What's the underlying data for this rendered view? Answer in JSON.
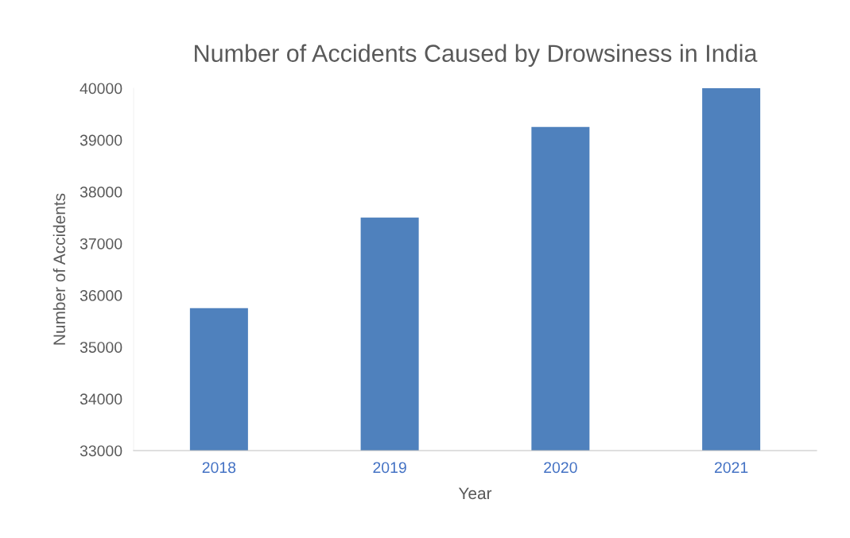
{
  "chart_data": {
    "type": "bar",
    "title": "Number of Accidents Caused by Drowsiness in India",
    "xlabel": "Year",
    "ylabel": "Number of Accidents",
    "categories": [
      "2018",
      "2019",
      "2020",
      "2021"
    ],
    "values": [
      35750,
      37500,
      39250,
      40000
    ],
    "color": "#4f81bd",
    "ylim": [
      33000,
      40000
    ],
    "yticks": [
      33000,
      34000,
      35000,
      36000,
      37000,
      38000,
      39000,
      40000
    ],
    "grid": false,
    "legend": false
  }
}
